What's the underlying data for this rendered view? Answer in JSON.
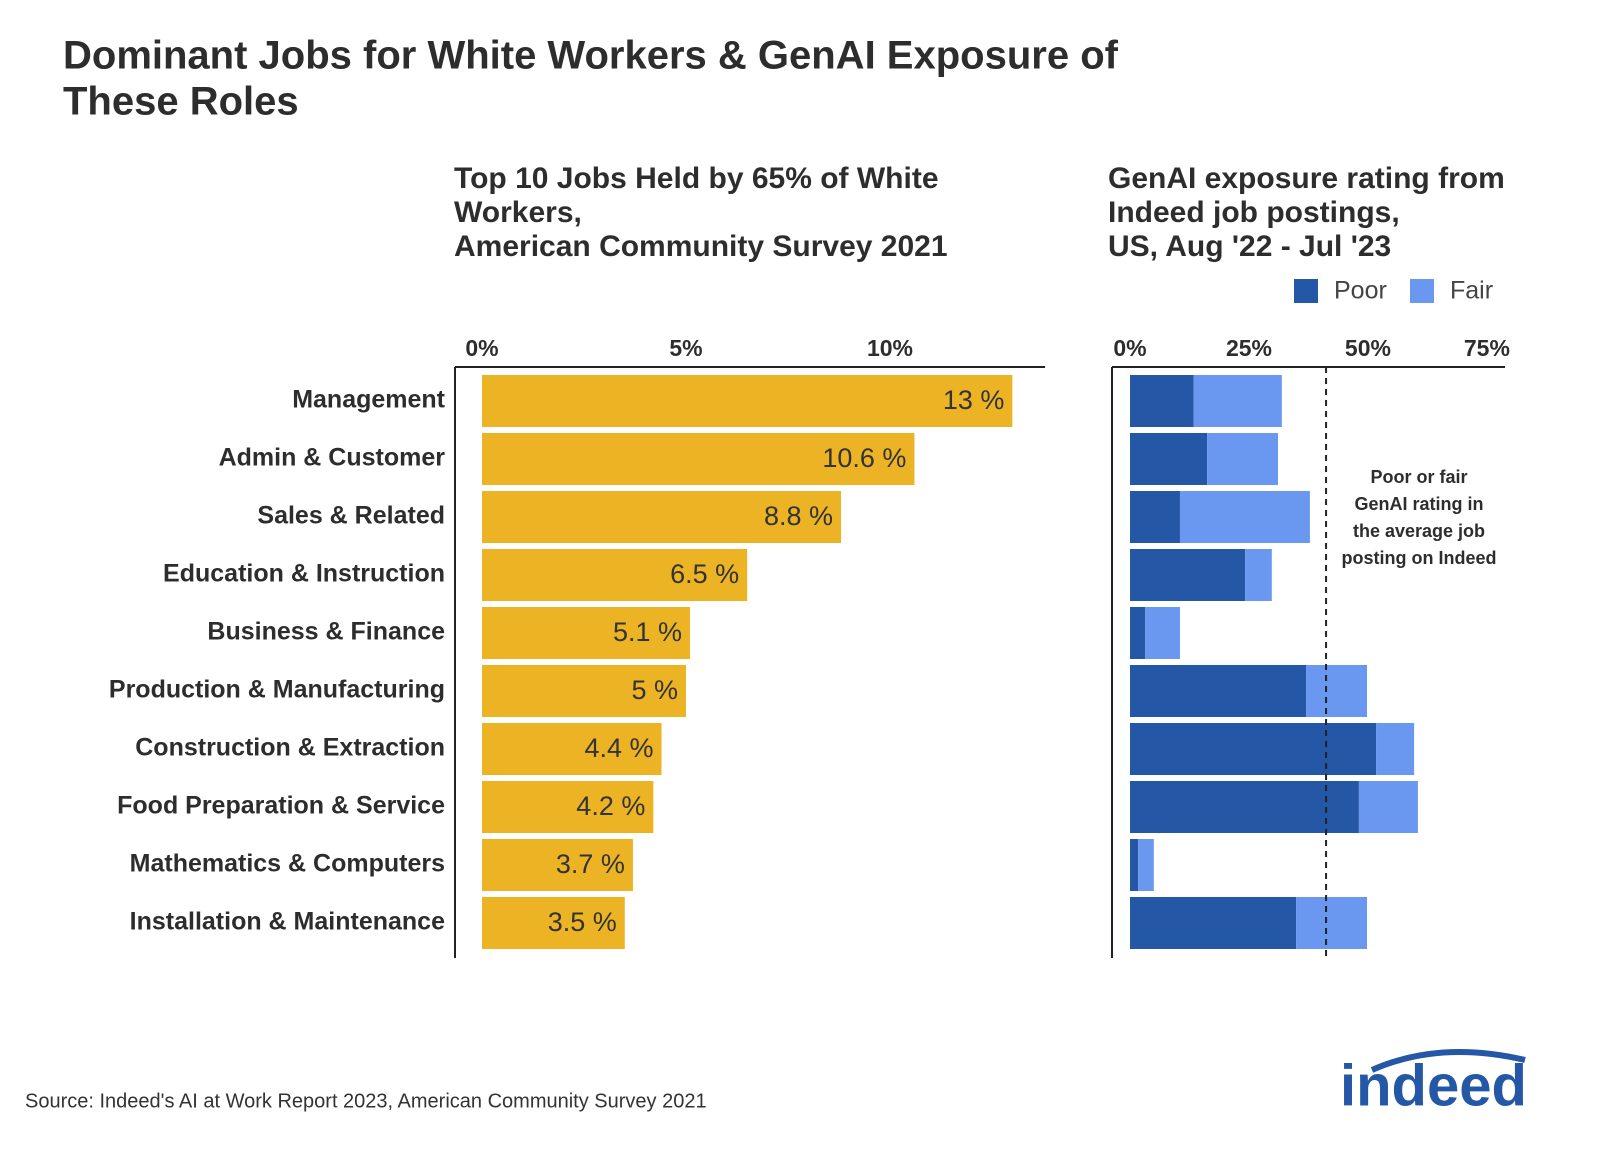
{
  "title": [
    "Dominant Jobs for White Workers & GenAI Exposure of",
    "These Roles"
  ],
  "source": "Source: Indeed's AI at Work Report 2023, American Community Survey 2021",
  "logo": "indeed",
  "chart_data": [
    {
      "type": "bar",
      "title": [
        "Top 10 Jobs Held by 65% of White",
        "Workers,",
        "American Community Survey 2021"
      ],
      "categories": [
        "Management",
        "Admin & Customer",
        "Sales & Related",
        "Education & Instruction",
        "Business & Finance",
        "Production & Manufacturing",
        "Construction & Extraction",
        "Food Preparation & Service",
        "Mathematics & Computers",
        "Installation & Maintenance"
      ],
      "values": [
        13,
        10.6,
        8.8,
        6.5,
        5.1,
        5,
        4.4,
        4.2,
        3.7,
        3.5
      ],
      "value_labels": [
        "13 %",
        "10.6 %",
        "8.8 %",
        "6.5 %",
        "5.1 %",
        "5 %",
        "4.4 %",
        "4.2 %",
        "3.7 %",
        "3.5 %"
      ],
      "color": "#ecb324",
      "xlim": [
        0,
        13.8
      ],
      "xticks": [
        {
          "value": 0,
          "label": "0%"
        },
        {
          "value": 5,
          "label": "5%"
        },
        {
          "value": 10,
          "label": "10%"
        }
      ]
    },
    {
      "type": "stacked_bar",
      "title": [
        "GenAI exposure rating from",
        "Indeed job postings,",
        "US, Aug '22 - Jul '23"
      ],
      "series": [
        {
          "name": "Poor",
          "color": "#2557a7",
          "values": [
            13.4,
            16.2,
            10.5,
            24.2,
            3.2,
            37.0,
            51.7,
            48.1,
            1.7,
            34.9
          ]
        },
        {
          "name": "Fair",
          "color": "#6a97f0",
          "values": [
            18.5,
            14.9,
            27.3,
            5.6,
            7.3,
            12.8,
            8.0,
            12.4,
            3.3,
            14.9
          ]
        }
      ],
      "xlim": [
        0,
        78.8
      ],
      "xticks": [
        {
          "value": 0,
          "label": "0%"
        },
        {
          "value": 25,
          "label": "25%"
        },
        {
          "value": 50,
          "label": "50%"
        },
        {
          "value": 75,
          "label": "75%"
        }
      ],
      "reference_line": 41.2,
      "annotation": [
        "Poor or fair",
        "GenAI rating in",
        "the average job",
        "posting on Indeed"
      ]
    }
  ]
}
